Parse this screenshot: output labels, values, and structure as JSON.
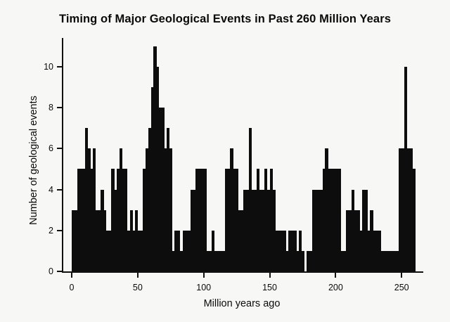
{
  "chart_data": {
    "type": "bar",
    "title": "Timing of Major Geological Events in Past 260 Million Years",
    "xlabel": "Million years ago",
    "ylabel": "Number of geological events",
    "bar_color": "#0d0d0d",
    "x_start": 0,
    "bin_width": 2,
    "xlim": [
      0,
      260
    ],
    "ylim": [
      0,
      11.4
    ],
    "xticks": [
      0,
      50,
      100,
      150,
      200,
      250
    ],
    "yticks": [
      0,
      2,
      4,
      6,
      8,
      10
    ],
    "grid": false,
    "legend": false,
    "values": [
      3,
      3,
      5,
      5,
      5,
      7,
      6,
      5,
      6,
      3,
      3,
      4,
      3,
      2,
      2,
      5,
      4,
      5,
      6,
      5,
      5,
      2,
      3,
      2,
      3,
      2,
      2,
      5,
      6,
      7,
      9,
      11,
      10,
      8,
      8,
      6,
      7,
      6,
      1,
      2,
      2,
      1,
      2,
      2,
      2,
      4,
      4,
      5,
      5,
      5,
      5,
      1,
      1,
      2,
      1,
      1,
      1,
      1,
      5,
      5,
      6,
      5,
      5,
      3,
      3,
      4,
      4,
      7,
      4,
      4,
      5,
      4,
      4,
      5,
      4,
      5,
      4,
      2,
      2,
      2,
      2,
      1,
      2,
      2,
      2,
      1,
      2,
      1,
      0,
      1,
      1,
      4,
      4,
      4,
      4,
      5,
      6,
      5,
      5,
      5,
      5,
      5,
      1,
      1,
      3,
      3,
      4,
      3,
      3,
      2,
      4,
      4,
      2,
      3,
      2,
      2,
      2,
      1,
      1,
      1,
      1,
      1,
      1,
      1,
      6,
      6,
      10,
      6,
      6,
      5
    ]
  }
}
